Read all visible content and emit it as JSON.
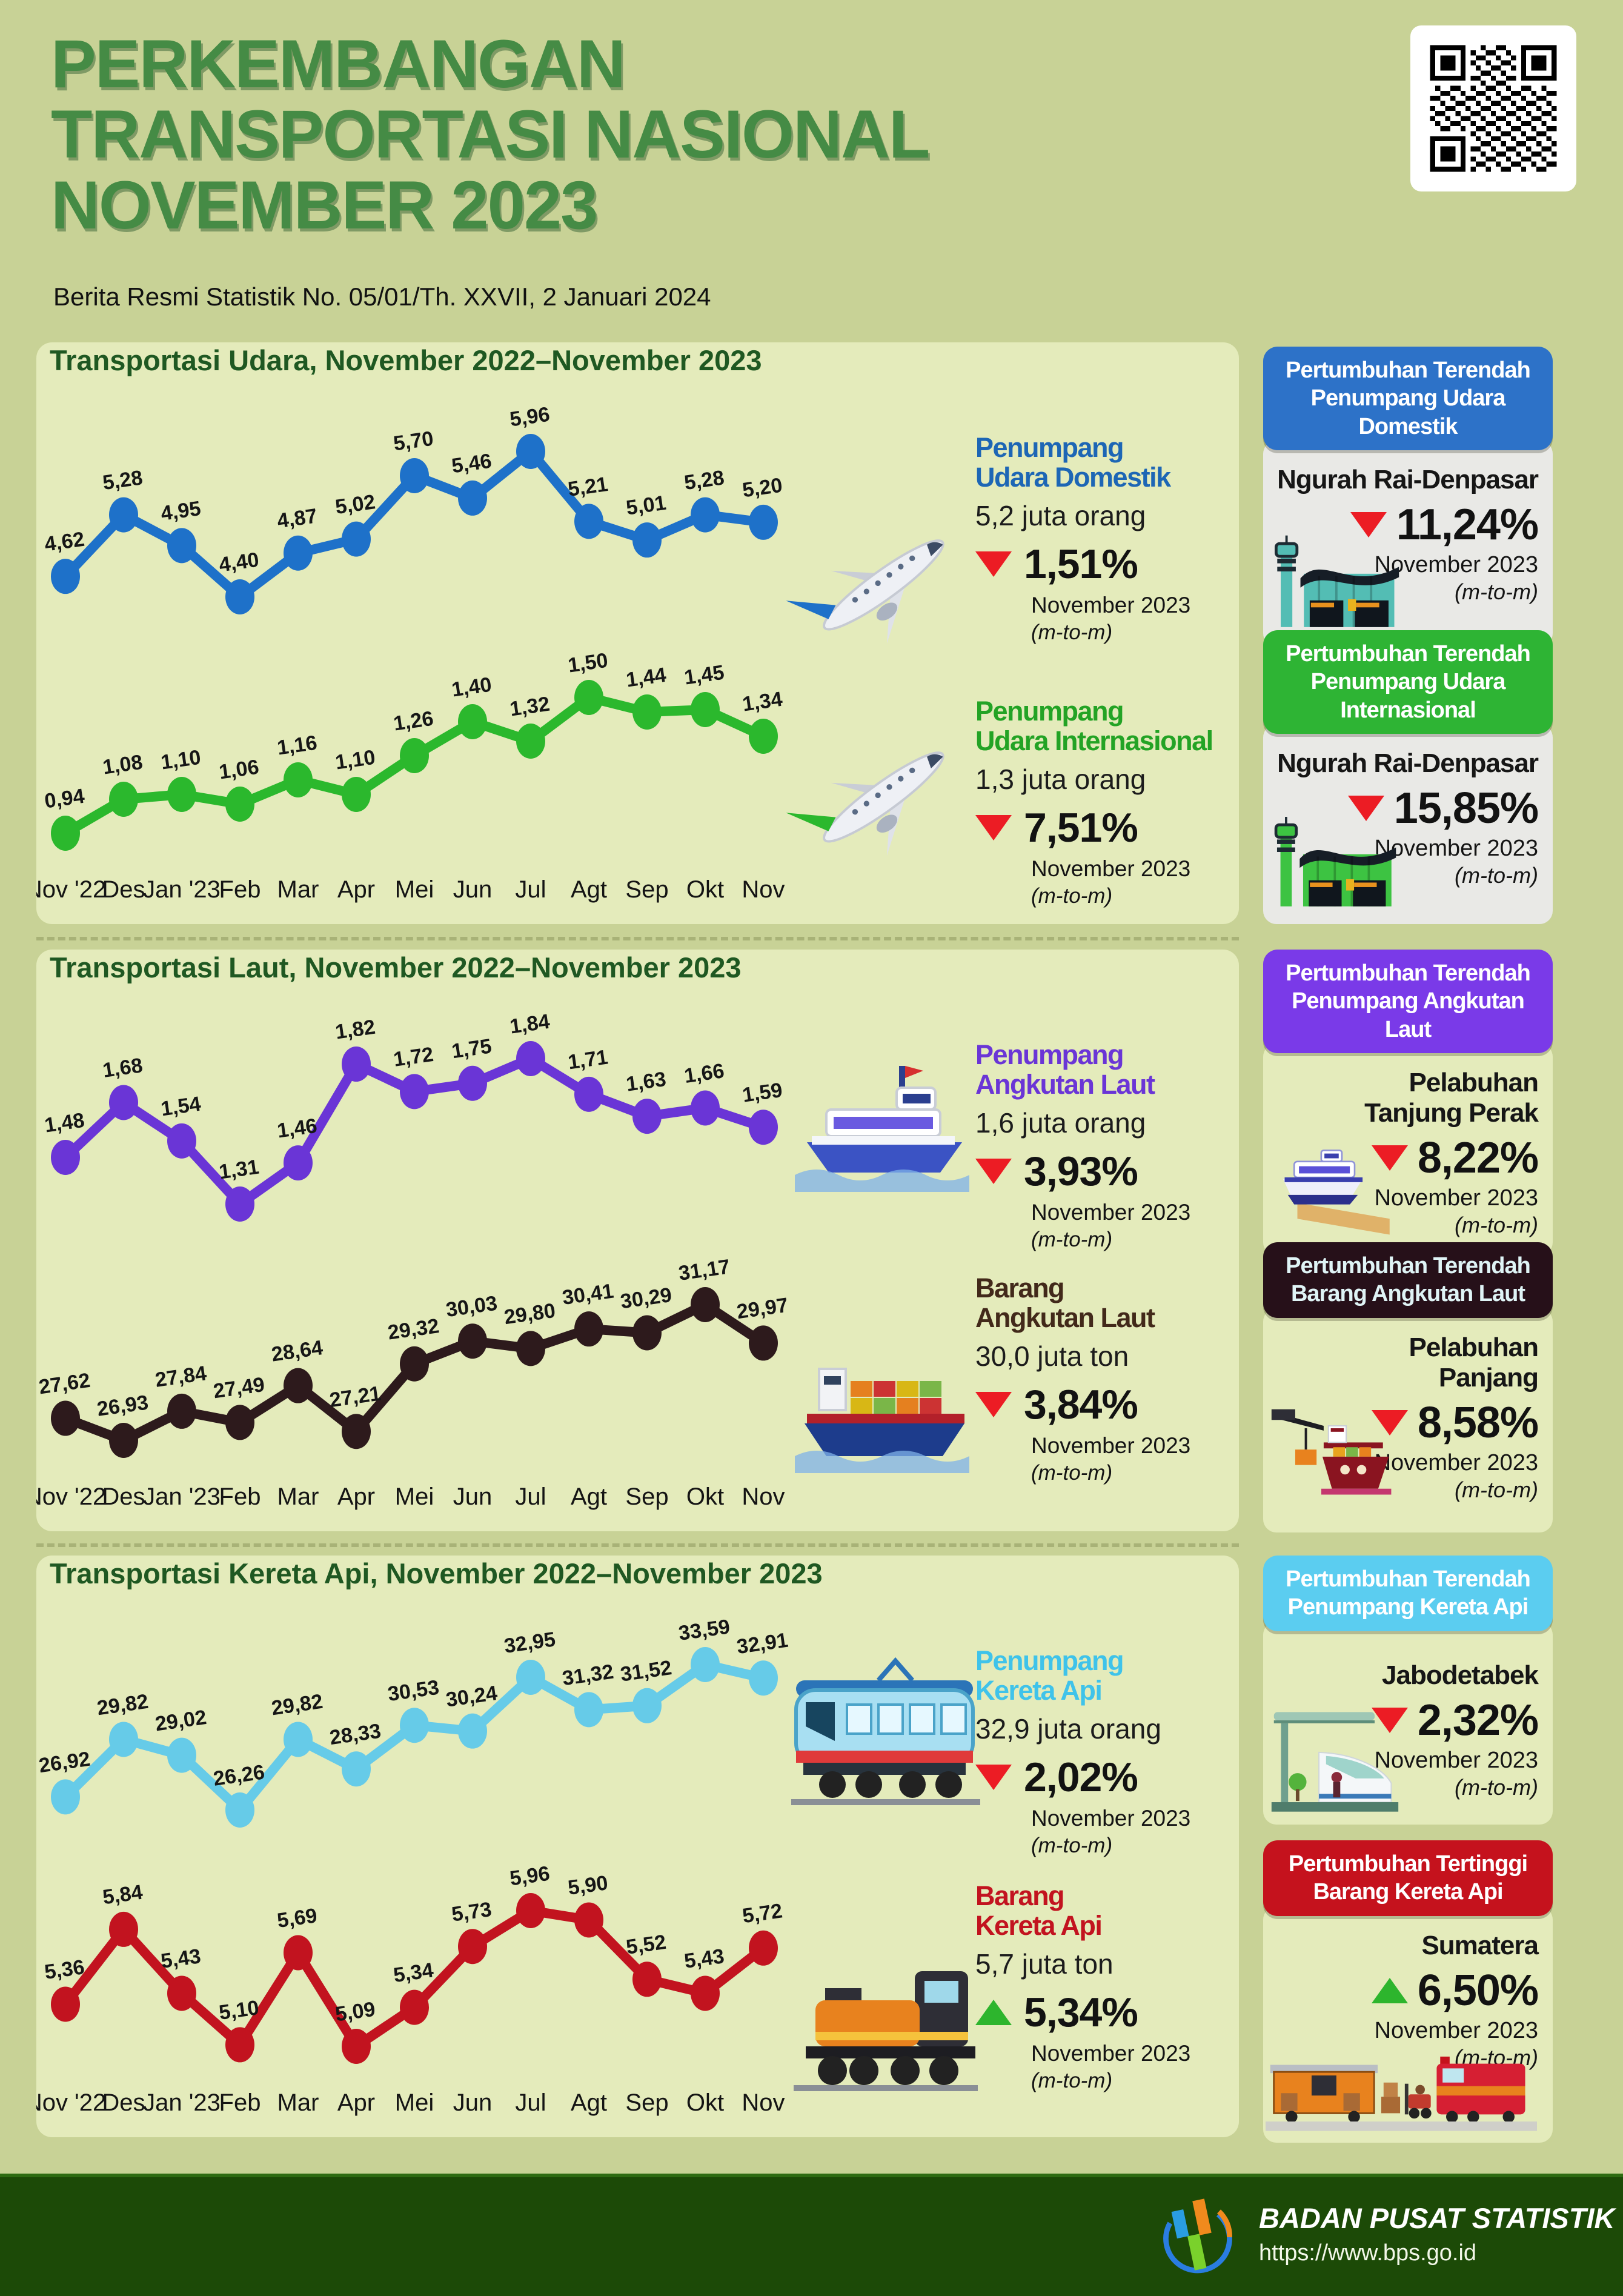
{
  "header": {
    "title": "PERKEMBANGAN\nTRANSPORTASI NASIONAL\nNOVEMBER 2023",
    "subtitle": "Berita Resmi Statistik No. 05/01/Th. XXVII, 2 Januari 2024"
  },
  "months": [
    "Nov '22",
    "Des",
    "Jan '23",
    "Feb",
    "Mar",
    "Apr",
    "Mei",
    "Jun",
    "Jul",
    "Agt",
    "Sep",
    "Okt",
    "Nov"
  ],
  "sections": [
    {
      "title": "Transportasi Udara, November 2022–November 2023",
      "metrics": [
        {
          "name": "Penumpang\nUdara Domestik",
          "value": "5,2 juta orang",
          "change": "1,51%",
          "direction": "down",
          "period": "November 2023",
          "note": "(m-to-m)"
        },
        {
          "name": "Penumpang\nUdara Internasional",
          "value": "1,3 juta orang",
          "change": "7,51%",
          "direction": "down",
          "period": "November 2023",
          "note": "(m-to-m)"
        }
      ]
    },
    {
      "title": "Transportasi Laut, November 2022–November 2023",
      "metrics": [
        {
          "name": "Penumpang\nAngkutan Laut",
          "value": "1,6 juta orang",
          "change": "3,93%",
          "direction": "down",
          "period": "November 2023",
          "note": "(m-to-m)"
        },
        {
          "name": "Barang\nAngkutan Laut",
          "value": "30,0 juta ton",
          "change": "3,84%",
          "direction": "down",
          "period": "November 2023",
          "note": "(m-to-m)"
        }
      ]
    },
    {
      "title": "Transportasi Kereta Api, November 2022–November 2023",
      "metrics": [
        {
          "name": "Penumpang\nKereta Api",
          "value": "32,9 juta orang",
          "change": "2,02%",
          "direction": "down",
          "period": "November 2023",
          "note": "(m-to-m)"
        },
        {
          "name": "Barang\nKereta Api",
          "value": "5,7 juta ton",
          "change": "5,34%",
          "direction": "up",
          "period": "November 2023",
          "note": "(m-to-m)"
        }
      ]
    }
  ],
  "chart_data": [
    {
      "svg_id": "chart-air-domestic",
      "type": "line",
      "title": "Penumpang Udara Domestik (juta orang)",
      "color": "#1e71c9",
      "x": [
        "Nov '22",
        "Des",
        "Jan '23",
        "Feb",
        "Mar",
        "Apr",
        "Mei",
        "Jun",
        "Jul",
        "Agt",
        "Sep",
        "Okt",
        "Nov"
      ],
      "values": [
        4.62,
        5.28,
        4.95,
        4.4,
        4.87,
        5.02,
        5.7,
        5.46,
        5.96,
        5.21,
        5.01,
        5.28,
        5.2
      ],
      "labels": [
        "4,62",
        "5,28",
        "4,95",
        "4,40",
        "4,87",
        "5,02",
        "5,70",
        "5,46",
        "5,96",
        "5,21",
        "5,01",
        "5,28",
        "5,20"
      ],
      "months_row": false
    },
    {
      "svg_id": "chart-air-intl",
      "type": "line",
      "title": "Penumpang Udara Internasional (juta orang)",
      "color": "#2bb82d",
      "x": [
        "Nov '22",
        "Des",
        "Jan '23",
        "Feb",
        "Mar",
        "Apr",
        "Mei",
        "Jun",
        "Jul",
        "Agt",
        "Sep",
        "Okt",
        "Nov"
      ],
      "values": [
        0.94,
        1.08,
        1.1,
        1.06,
        1.16,
        1.1,
        1.26,
        1.4,
        1.32,
        1.5,
        1.44,
        1.45,
        1.34
      ],
      "labels": [
        "0,94",
        "1,08",
        "1,10",
        "1,06",
        "1,16",
        "1,10",
        "1,26",
        "1,40",
        "1,32",
        "1,50",
        "1,44",
        "1,45",
        "1,34"
      ],
      "months_row": true
    },
    {
      "svg_id": "chart-sea-pax",
      "type": "line",
      "title": "Penumpang Angkutan Laut (juta orang)",
      "color": "#6a35d6",
      "x": [
        "Nov '22",
        "Des",
        "Jan '23",
        "Feb",
        "Mar",
        "Apr",
        "Mei",
        "Jun",
        "Jul",
        "Agt",
        "Sep",
        "Okt",
        "Nov"
      ],
      "values": [
        1.48,
        1.68,
        1.54,
        1.31,
        1.46,
        1.82,
        1.72,
        1.75,
        1.84,
        1.71,
        1.63,
        1.66,
        1.59
      ],
      "labels": [
        "1,48",
        "1,68",
        "1,54",
        "1,31",
        "1,46",
        "1,82",
        "1,72",
        "1,75",
        "1,84",
        "1,71",
        "1,63",
        "1,66",
        "1,59"
      ],
      "months_row": false
    },
    {
      "svg_id": "chart-sea-cargo",
      "type": "line",
      "title": "Barang Angkutan Laut (juta ton)",
      "color": "#2d1a1c",
      "x": [
        "Nov '22",
        "Des",
        "Jan '23",
        "Feb",
        "Mar",
        "Apr",
        "Mei",
        "Jun",
        "Jul",
        "Agt",
        "Sep",
        "Okt",
        "Nov"
      ],
      "values": [
        27.62,
        26.93,
        27.84,
        27.49,
        28.64,
        27.21,
        29.32,
        30.03,
        29.8,
        30.41,
        30.29,
        31.17,
        29.97
      ],
      "labels": [
        "27,62",
        "26,93",
        "27,84",
        "27,49",
        "28,64",
        "27,21",
        "29,32",
        "30,03",
        "29,80",
        "30,41",
        "30,29",
        "31,17",
        "29,97"
      ],
      "months_row": true
    },
    {
      "svg_id": "chart-rail-pax",
      "type": "line",
      "title": "Penumpang Kereta Api (juta orang)",
      "color": "#66cbe8",
      "x": [
        "Nov '22",
        "Des",
        "Jan '23",
        "Feb",
        "Mar",
        "Apr",
        "Mei",
        "Jun",
        "Jul",
        "Agt",
        "Sep",
        "Okt",
        "Nov"
      ],
      "values": [
        26.92,
        29.82,
        29.02,
        26.26,
        29.82,
        28.33,
        30.53,
        30.24,
        32.95,
        31.32,
        31.52,
        33.59,
        32.91
      ],
      "labels": [
        "26,92",
        "29,82",
        "29,02",
        "26,26",
        "29,82",
        "28,33",
        "30,53",
        "30,24",
        "32,95",
        "31,32",
        "31,52",
        "33,59",
        "32,91"
      ],
      "months_row": false
    },
    {
      "svg_id": "chart-rail-cargo",
      "type": "line",
      "title": "Barang Kereta Api (juta ton)",
      "color": "#c2131f",
      "x": [
        "Nov '22",
        "Des",
        "Jan '23",
        "Feb",
        "Mar",
        "Apr",
        "Mei",
        "Jun",
        "Jul",
        "Agt",
        "Sep",
        "Okt",
        "Nov"
      ],
      "values": [
        5.36,
        5.84,
        5.43,
        5.1,
        5.69,
        5.09,
        5.34,
        5.73,
        5.96,
        5.9,
        5.52,
        5.43,
        5.72
      ],
      "labels": [
        "5,36",
        "5,84",
        "5,43",
        "5,10",
        "5,69",
        "5,09",
        "5,34",
        "5,73",
        "5,96",
        "5,90",
        "5,52",
        "5,43",
        "5,72"
      ],
      "months_row": true
    }
  ],
  "sidebar": [
    {
      "header": "Pertumbuhan Terendah\nPenumpang Udara Domestik",
      "location": "Ngurah Rai-Denpasar",
      "change": "11,24%",
      "direction": "down",
      "period": "November 2023",
      "note": "(m-to-m)",
      "accent": "#2d72c8"
    },
    {
      "header": "Pertumbuhan Terendah\nPenumpang Udara\nInternasional",
      "location": "Ngurah Rai-Denpasar",
      "change": "15,85%",
      "direction": "down",
      "period": "November 2023",
      "note": "(m-to-m)",
      "accent": "#2eb434"
    },
    {
      "header": "Pertumbuhan Terendah\nPenumpang Angkutan Laut",
      "location": "Pelabuhan\nTanjung Perak",
      "change": "8,22%",
      "direction": "down",
      "period": "November 2023",
      "note": "(m-to-m)",
      "accent": "#7a3ae8"
    },
    {
      "header": "Pertumbuhan Terendah\nBarang Angkutan Laut",
      "location": "Pelabuhan\nPanjang",
      "change": "8,58%",
      "direction": "down",
      "period": "November 2023",
      "note": "(m-to-m)",
      "accent": "#261019"
    },
    {
      "header": "Pertumbuhan Terendah\nPenumpang Kereta Api",
      "location": "Jabodetabek",
      "change": "2,32%",
      "direction": "down",
      "period": "November 2023",
      "note": "(m-to-m)",
      "accent": "#5bcdf0"
    },
    {
      "header": "Pertumbuhan Tertinggi\nBarang Kereta Api",
      "location": "Sumatera",
      "change": "6,50%",
      "direction": "up",
      "period": "November 2023",
      "note": "(m-to-m)",
      "accent": "#c5121d"
    }
  ],
  "footer": {
    "org": "BADAN PUSAT STATISTIK",
    "url": "https://www.bps.go.id"
  },
  "colors": {
    "page_bg": "#c8d296",
    "panel_bg": "#e4ebbb",
    "title_green": "#458b45",
    "down_red": "#ec1c24",
    "up_green": "#2db52d",
    "footer_bg": "#1c4a07"
  }
}
